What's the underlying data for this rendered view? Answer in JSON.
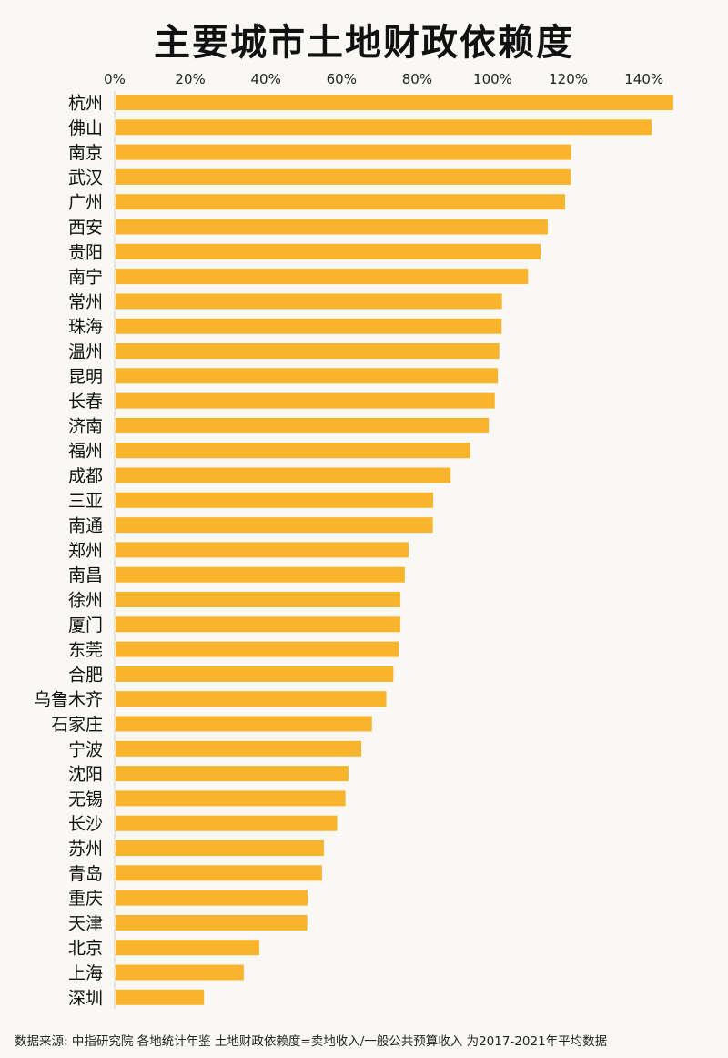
{
  "title": "主要城市土地财政依赖度",
  "footer": "数据来源: 中指研究院 各地统计年鉴  土地财政依赖度=卖地收入/一般公共预算收入 为2017-2021年平均数据",
  "colors": {
    "bar": "#f9b42d",
    "axis": "#cfcfcf",
    "background": "#f9f8f4"
  },
  "chart_data": {
    "type": "bar",
    "orientation": "horizontal",
    "title": "主要城市土地财政依赖度",
    "xlim": [
      0,
      150
    ],
    "xticks": [
      "0%",
      "20%",
      "40%",
      "60%",
      "80%",
      "100%",
      "120%",
      "140%"
    ],
    "tick_values": [
      0,
      20,
      40,
      60,
      80,
      100,
      120,
      140
    ],
    "xaxis_position": "top",
    "grid": false,
    "categories": [
      "杭州",
      "佛山",
      "南京",
      "武汉",
      "广州",
      "西安",
      "贵阳",
      "南宁",
      "常州",
      "珠海",
      "温州",
      "昆明",
      "长春",
      "济南",
      "福州",
      "成都",
      "三亚",
      "南通",
      "郑州",
      "南昌",
      "徐州",
      "厦门",
      "东莞",
      "合肥",
      "乌鲁木齐",
      "石家庄",
      "宁波",
      "沈阳",
      "无锡",
      "长沙",
      "苏州",
      "青岛",
      "重庆",
      "天津",
      "北京",
      "上海",
      "深圳"
    ],
    "values": [
      147.5,
      141.8,
      120.5,
      120.4,
      118.9,
      114.3,
      112.4,
      109.1,
      102.2,
      102.1,
      101.5,
      101.1,
      100.3,
      98.7,
      93.8,
      88.6,
      84.0,
      83.9,
      77.5,
      76.5,
      75.3,
      75.3,
      74.9,
      73.5,
      71.6,
      67.8,
      65.0,
      61.6,
      60.8,
      58.6,
      55.1,
      54.6,
      50.8,
      50.7,
      38.0,
      33.9,
      23.4
    ]
  }
}
